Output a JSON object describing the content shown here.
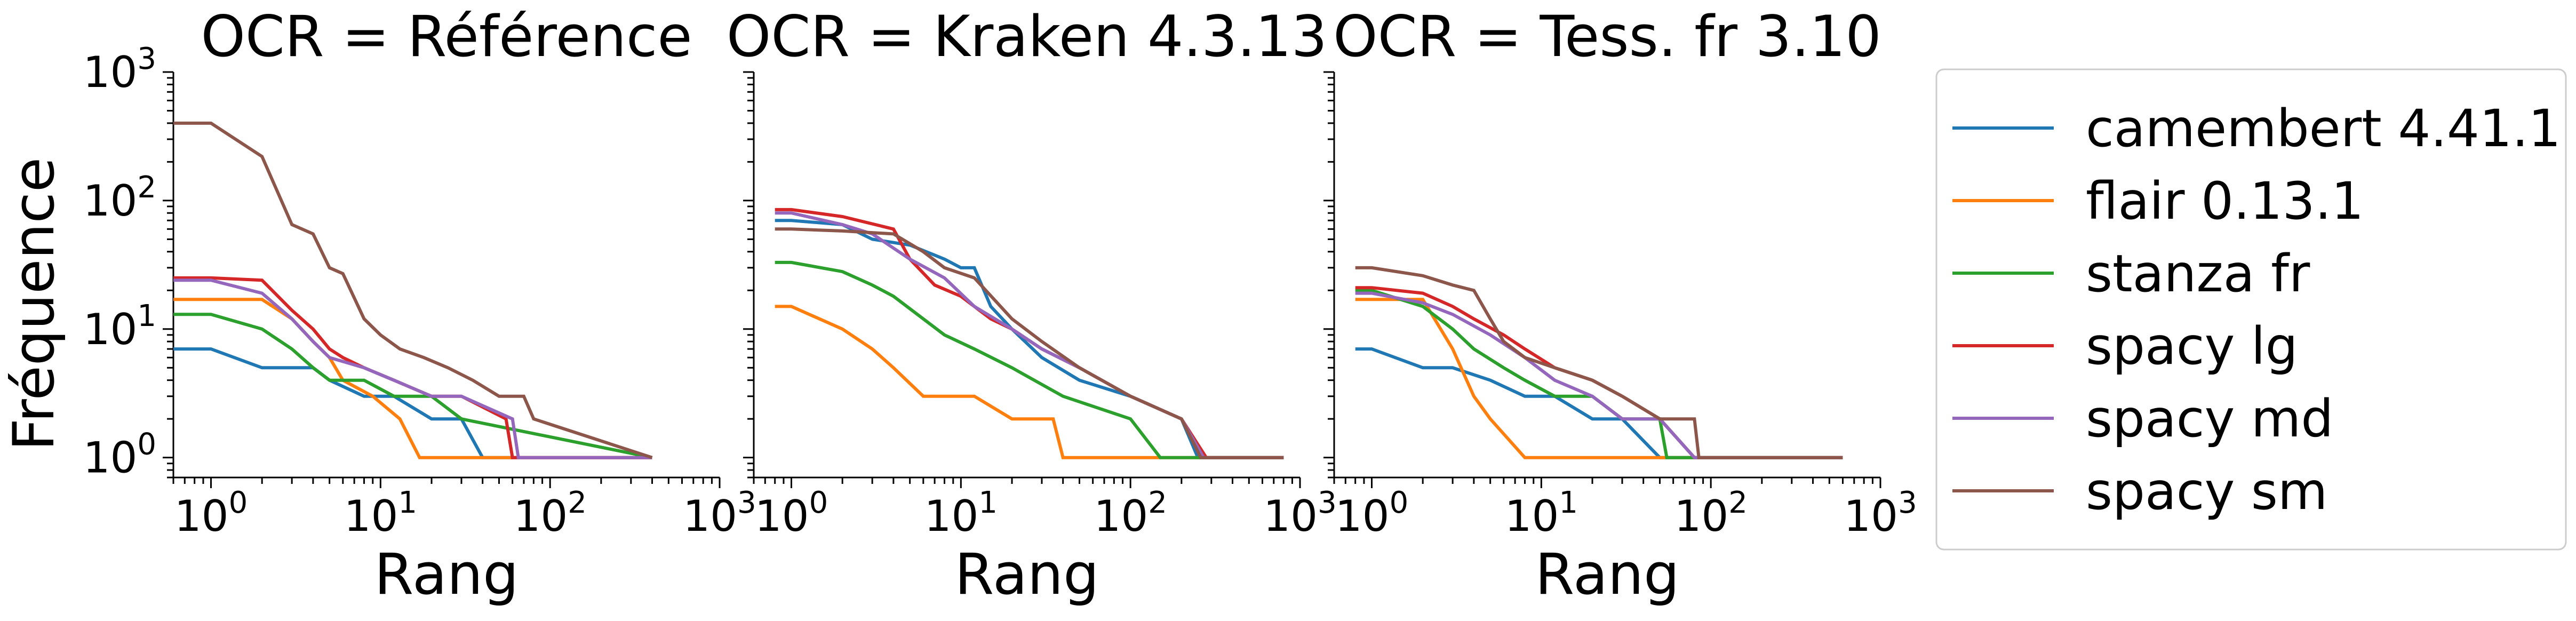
{
  "chart_data": {
    "type": "line",
    "ylabel": "Fréquence",
    "xscale": "log",
    "yscale": "log",
    "xlim": [
      0.6,
      1000
    ],
    "ylim": [
      0.7,
      1000
    ],
    "grid": false,
    "legend_position": "right",
    "colors": {
      "camembert 4.41.1": "#1f77b4",
      "flair 0.13.1": "#ff7f0e",
      "stanza fr": "#2ca02c",
      "spacy lg": "#d62728",
      "spacy md": "#9467bd",
      "spacy sm": "#8c564b"
    },
    "legend": [
      "camembert 4.41.1",
      "flair 0.13.1",
      "stanza fr",
      "spacy lg",
      "spacy md",
      "spacy sm"
    ],
    "panels": [
      {
        "title": "OCR = Référence",
        "xlabel": "Rang",
        "x_tick_labels": [
          "10",
          "10",
          "10",
          "10"
        ],
        "x_tick_exponents": [
          "0",
          "1",
          "2",
          "3"
        ],
        "y_tick_labels": [
          "10",
          "10",
          "10",
          "10"
        ],
        "y_tick_exponents": [
          "0",
          "1",
          "2",
          "3"
        ],
        "series": [
          {
            "name": "camembert 4.41.1",
            "x": [
              0.6,
              1,
              2,
              3,
              4,
              5,
              8,
              12,
              20,
              30,
              40,
              400
            ],
            "y": [
              7,
              7,
              5,
              5,
              5,
              4,
              3,
              3,
              2,
              2,
              1,
              1
            ]
          },
          {
            "name": "flair 0.13.1",
            "x": [
              0.6,
              1,
              2,
              3,
              4,
              5,
              6,
              9,
              13,
              17,
              400
            ],
            "y": [
              17,
              17,
              17,
              12,
              8,
              6,
              4,
              3,
              2,
              1,
              1
            ]
          },
          {
            "name": "stanza fr",
            "x": [
              0.6,
              1,
              2,
              3,
              4,
              5,
              8,
              12,
              20,
              30,
              400
            ],
            "y": [
              13,
              13,
              10,
              7,
              5,
              4,
              4,
              3,
              3,
              2,
              1
            ]
          },
          {
            "name": "spacy lg",
            "x": [
              0.6,
              1,
              2,
              3,
              4,
              5,
              6,
              8,
              12,
              20,
              30,
              55,
              60,
              400
            ],
            "y": [
              25,
              25,
              24,
              14,
              10,
              7,
              6,
              5,
              4,
              3,
              3,
              2,
              1,
              1
            ]
          },
          {
            "name": "spacy md",
            "x": [
              0.6,
              1,
              2,
              3,
              4,
              5,
              8,
              12,
              20,
              30,
              60,
              65,
              400
            ],
            "y": [
              24,
              24,
              19,
              12,
              8,
              6,
              5,
              4,
              3,
              3,
              2,
              1,
              1
            ]
          },
          {
            "name": "spacy sm",
            "x": [
              0.6,
              1,
              2,
              3,
              4,
              5,
              6,
              8,
              10,
              13,
              18,
              25,
              35,
              50,
              70,
              80,
              400
            ],
            "y": [
              400,
              400,
              220,
              65,
              55,
              30,
              27,
              12,
              9,
              7,
              6,
              5,
              4,
              3,
              3,
              2,
              1
            ]
          }
        ]
      },
      {
        "title": "OCR = Kraken 4.3.13",
        "xlabel": "Rang",
        "x_tick_labels": [
          "10",
          "10",
          "10",
          "10"
        ],
        "x_tick_exponents": [
          "0",
          "1",
          "2",
          "3"
        ],
        "y_tick_labels": [],
        "y_tick_exponents": [],
        "series": [
          {
            "name": "camembert 4.41.1",
            "x": [
              0.8,
              1,
              2,
              3,
              5,
              8,
              10,
              12,
              15,
              20,
              30,
              50,
              100,
              200,
              250,
              800
            ],
            "y": [
              70,
              70,
              65,
              50,
              45,
              35,
              30,
              30,
              15,
              10,
              6,
              4,
              3,
              2,
              1,
              1
            ]
          },
          {
            "name": "flair 0.13.1",
            "x": [
              0.8,
              1,
              2,
              3,
              4,
              6,
              8,
              12,
              20,
              35,
              40,
              800
            ],
            "y": [
              15,
              15,
              10,
              7,
              5,
              3,
              3,
              3,
              2,
              2,
              1,
              1
            ]
          },
          {
            "name": "stanza fr",
            "x": [
              0.8,
              1,
              2,
              3,
              4,
              6,
              8,
              12,
              20,
              40,
              100,
              150,
              800
            ],
            "y": [
              33,
              33,
              28,
              22,
              18,
              12,
              9,
              7,
              5,
              3,
              2,
              1,
              1
            ]
          },
          {
            "name": "spacy lg",
            "x": [
              0.8,
              1,
              2,
              4,
              5,
              7,
              10,
              15,
              20,
              30,
              50,
              100,
              200,
              280,
              800
            ],
            "y": [
              85,
              85,
              75,
              60,
              35,
              22,
              18,
              12,
              10,
              7,
              5,
              3,
              2,
              1,
              1
            ]
          },
          {
            "name": "spacy md",
            "x": [
              0.8,
              1,
              2,
              3,
              5,
              8,
              12,
              20,
              30,
              50,
              100,
              200,
              270,
              800
            ],
            "y": [
              80,
              80,
              65,
              55,
              35,
              25,
              15,
              10,
              7,
              5,
              3,
              2,
              1,
              1
            ]
          },
          {
            "name": "spacy sm",
            "x": [
              0.8,
              1,
              2,
              4,
              6,
              8,
              12,
              20,
              30,
              50,
              100,
              200,
              260,
              800
            ],
            "y": [
              60,
              60,
              58,
              55,
              40,
              30,
              25,
              12,
              8,
              5,
              3,
              2,
              1,
              1
            ]
          }
        ]
      },
      {
        "title": "OCR = Tess. fr 3.10",
        "xlabel": "Rang",
        "x_tick_labels": [
          "10",
          "10",
          "10",
          "10"
        ],
        "x_tick_exponents": [
          "0",
          "1",
          "2",
          "3"
        ],
        "y_tick_labels": [],
        "y_tick_exponents": [],
        "series": [
          {
            "name": "camembert 4.41.1",
            "x": [
              0.8,
              1,
              2,
              3,
              5,
              8,
              12,
              20,
              30,
              50,
              600
            ],
            "y": [
              7,
              7,
              5,
              5,
              4,
              3,
              3,
              2,
              2,
              1,
              1
            ]
          },
          {
            "name": "flair 0.13.1",
            "x": [
              0.8,
              1,
              2,
              3,
              4,
              5,
              8,
              16,
              20,
              600
            ],
            "y": [
              17,
              17,
              17,
              7,
              3,
              2,
              1,
              1,
              1,
              1
            ]
          },
          {
            "name": "stanza fr",
            "x": [
              0.8,
              1,
              2,
              3,
              4,
              6,
              8,
              12,
              20,
              30,
              50,
              55,
              600
            ],
            "y": [
              20,
              20,
              15,
              10,
              7,
              5,
              4,
              3,
              3,
              2,
              2,
              1,
              1
            ]
          },
          {
            "name": "spacy lg",
            "x": [
              0.8,
              1,
              2,
              3,
              4,
              6,
              8,
              12,
              20,
              30,
              50,
              80,
              600
            ],
            "y": [
              21,
              21,
              19,
              15,
              12,
              9,
              7,
              5,
              4,
              3,
              2,
              1,
              1
            ]
          },
          {
            "name": "spacy md",
            "x": [
              0.8,
              1,
              2,
              3,
              5,
              8,
              12,
              20,
              30,
              50,
              80,
              600
            ],
            "y": [
              19,
              19,
              16,
              13,
              9,
              6,
              4,
              3,
              2,
              2,
              1,
              1
            ]
          },
          {
            "name": "spacy sm",
            "x": [
              0.8,
              1,
              2,
              3,
              4,
              5,
              6,
              8,
              12,
              20,
              30,
              50,
              80,
              85,
              600
            ],
            "y": [
              30,
              30,
              26,
              22,
              20,
              12,
              8,
              6,
              5,
              4,
              3,
              2,
              2,
              1,
              1
            ]
          }
        ]
      }
    ]
  }
}
